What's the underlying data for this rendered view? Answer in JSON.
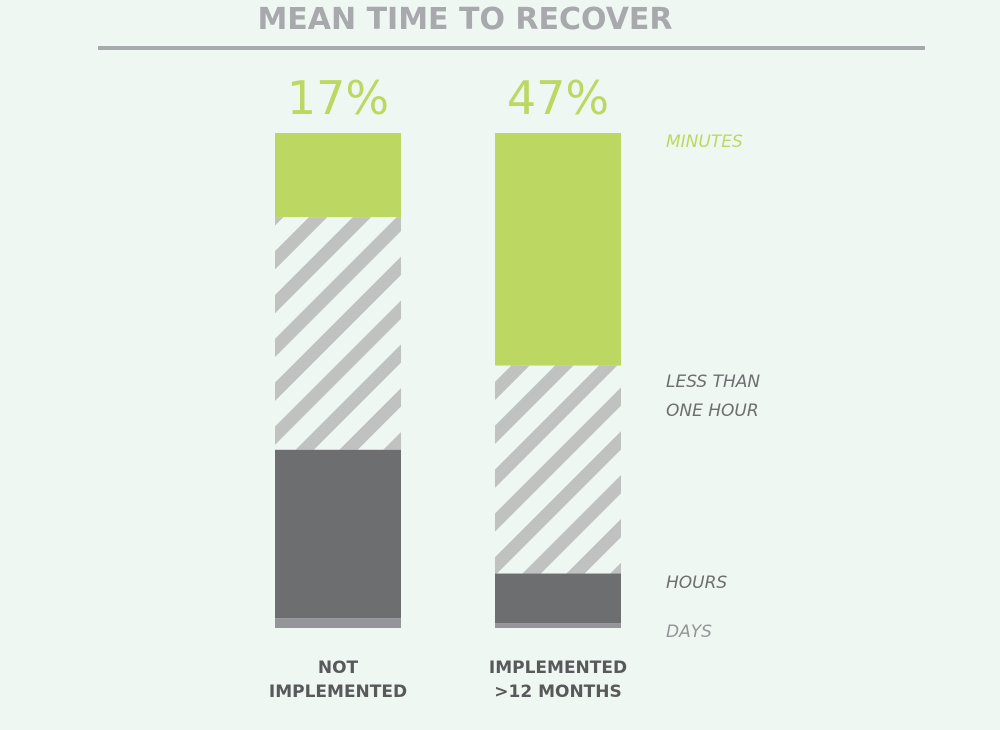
{
  "chart_data": {
    "type": "stacked-bar",
    "title": "MEAN TIME TO RECOVER",
    "categories": [
      "NOT IMPLEMENTED",
      "IMPLEMENTED >12 MONTHS"
    ],
    "ylim": [
      0,
      100
    ],
    "series": [
      {
        "name": "MINUTES",
        "color": "#bdd862",
        "values": [
          17,
          47
        ],
        "value_labels": [
          "17%",
          "47%"
        ]
      },
      {
        "name": "LESS THAN ONE HOUR",
        "color": "#c0c2c2",
        "hatch": true,
        "values": [
          47,
          42
        ]
      },
      {
        "name": "HOURS",
        "color": "#6d6e70",
        "values": [
          34,
          10
        ]
      },
      {
        "name": "DAYS",
        "color": "#939598",
        "values": [
          2,
          1
        ]
      }
    ]
  }
}
